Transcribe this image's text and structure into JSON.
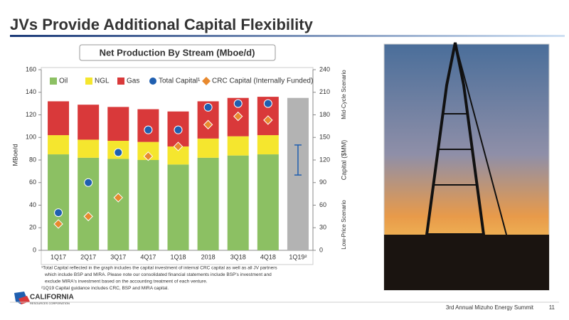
{
  "header": {
    "title": "JVs Provide Additional Capital Flexibility"
  },
  "chart_data": {
    "type": "bar",
    "stacked": true,
    "title": "Net Production By Stream (Mboe/d)",
    "y_label": "MBoe/d",
    "y2_label": "Capital ($MM)",
    "y2_annotations": [
      "Mid-Cycle Scenario",
      "Low-Price Scenario"
    ],
    "categories": [
      "1Q17",
      "2Q17",
      "3Q17",
      "4Q17",
      "1Q18",
      "2018",
      "3Q18",
      "4Q18",
      "1Q19²"
    ],
    "series": [
      {
        "name": "Oil",
        "color": "#8cc063",
        "values": [
          85,
          82,
          81,
          80,
          76,
          82,
          84,
          85,
          null
        ]
      },
      {
        "name": "NGL",
        "color": "#f5e62e",
        "values": [
          17,
          16,
          16,
          16,
          16,
          17,
          17,
          17,
          null
        ]
      },
      {
        "name": "Gas",
        "color": "#d9393a",
        "values": [
          30,
          31,
          30,
          29,
          31,
          33,
          34,
          34,
          null
        ]
      }
    ],
    "guidance_values": [
      null,
      null,
      null,
      null,
      null,
      null,
      null,
      null,
      135
    ],
    "guidance_color": "#b3b3b3",
    "markers": [
      {
        "name": "Total Capital¹",
        "shape": "circle",
        "color": "#1f5fb0",
        "axis": "y2",
        "values": [
          50,
          90,
          130,
          160,
          160,
          190,
          195,
          195,
          null
        ]
      },
      {
        "name": "CRC Capital (Internally Funded)",
        "shape": "diamond",
        "color": "#e8892e",
        "axis": "y2",
        "values": [
          35,
          45,
          70,
          125,
          138,
          167,
          178,
          173,
          null
        ]
      }
    ],
    "capital_range": [
      100,
      140
    ],
    "capital_range_index": 8,
    "capital_range_color": "#1f5fb0",
    "ylim": [
      0,
      160
    ],
    "yticks": [
      0,
      20,
      40,
      60,
      80,
      100,
      120,
      140,
      160
    ],
    "y2lim": [
      0,
      240
    ],
    "y2ticks": [
      0,
      30,
      60,
      90,
      120,
      150,
      180,
      210,
      240
    ],
    "grid": false
  },
  "footnotes": [
    "¹Total Capital reflected in the graph includes the capital investment of internal CRC capital as well as all JV partners",
    "which include BSP and MIRA.  Please note our consolidated financial statements include BSP's investment and",
    "exclude MIRA's investment based on the accounting treatment of each venture.",
    "²1Q19 Capital guidance includes CRC, BSP and MIRA capital."
  ],
  "logo": {
    "name": "CALIFORNIA",
    "sub": "RESOURCES CORPORATION"
  },
  "footer": {
    "event": "3rd Annual Mizuho Energy Summit",
    "page": "11"
  }
}
